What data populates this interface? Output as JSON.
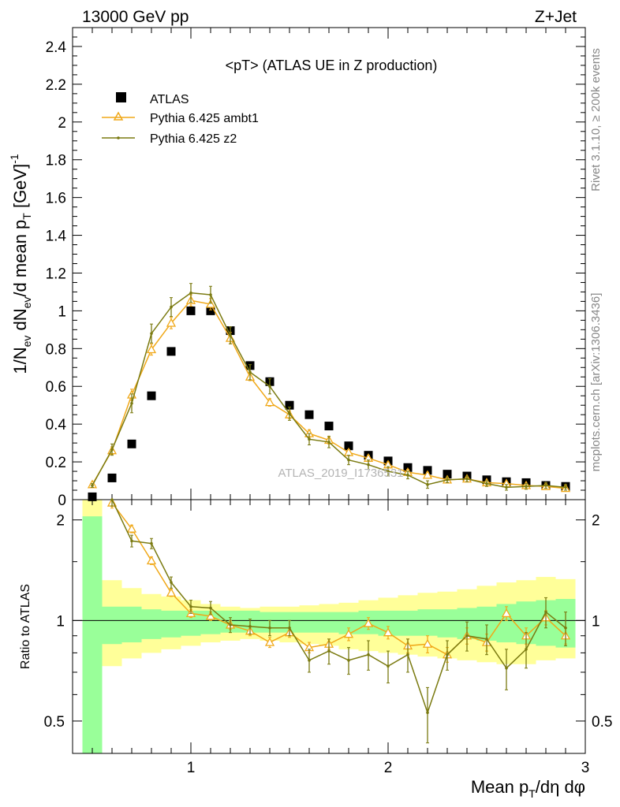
{
  "header": {
    "left": "13000 GeV pp",
    "right": "Z+Jet"
  },
  "side": {
    "rivet": "Rivet 3.1.10, ≥ 200k events",
    "mcplots": "mcplots.cern.ch [arXiv:1306.3436]"
  },
  "watermark": "ATLAS_2019_I1736531",
  "chart_data": [
    {
      "type": "scatter",
      "title": "<pT> (ATLAS UE in Z production)",
      "xlabel": "Mean p_T/dη dφ",
      "ylabel": "1/N_ev dN_ev/d mean p_T [GeV]^-1",
      "xlim": [
        0.4,
        3.0
      ],
      "ylim": [
        0,
        2.5
      ],
      "xticks": [
        "1",
        "2",
        "3"
      ],
      "yticks": [
        "0",
        "0.2",
        "0.4",
        "0.6",
        "0.8",
        "1",
        "1.2",
        "1.4",
        "1.6",
        "1.8",
        "2",
        "2.2",
        "2.4"
      ],
      "legend_position": "top-left",
      "legend": [
        "ATLAS",
        "Pythia 6.425 ambt1",
        "Pythia 6.425 z2"
      ],
      "x": [
        0.5,
        0.6,
        0.7,
        0.8,
        0.9,
        1.0,
        1.1,
        1.2,
        1.3,
        1.4,
        1.5,
        1.6,
        1.7,
        1.8,
        1.9,
        2.0,
        2.1,
        2.2,
        2.3,
        2.4,
        2.5,
        2.6,
        2.7,
        2.8,
        2.9
      ],
      "series": [
        {
          "name": "ATLAS",
          "color": "#000000",
          "marker": "square",
          "values": [
            0.015,
            0.115,
            0.295,
            0.55,
            0.785,
            1.0,
            1.0,
            0.895,
            0.71,
            0.625,
            0.5,
            0.45,
            0.39,
            0.285,
            0.235,
            0.205,
            0.17,
            0.155,
            0.135,
            0.125,
            0.105,
            0.095,
            0.09,
            0.075,
            0.07
          ]
        },
        {
          "name": "Pythia 6.425 ambt1",
          "color": "#f0a818",
          "marker": "triangle",
          "values": [
            0.08,
            0.26,
            0.555,
            0.795,
            0.935,
            1.055,
            1.035,
            0.855,
            0.65,
            0.515,
            0.45,
            0.35,
            0.315,
            0.25,
            0.22,
            0.185,
            0.145,
            0.13,
            0.105,
            0.11,
            0.09,
            0.085,
            0.075,
            0.07,
            0.06
          ],
          "errors": [
            0.01,
            0.02,
            0.03,
            0.03,
            0.03,
            0.03,
            0.03,
            0.03,
            0.02,
            0.02,
            0.02,
            0.02,
            0.02,
            0.015,
            0.015,
            0.015,
            0.015,
            0.015,
            0.01,
            0.01,
            0.01,
            0.01,
            0.01,
            0.01,
            0.01
          ]
        },
        {
          "name": "Pythia 6.425 z2",
          "color": "#7a7a10",
          "marker": "dot",
          "values": [
            0.075,
            0.265,
            0.51,
            0.88,
            1.02,
            1.095,
            1.085,
            0.87,
            0.675,
            0.6,
            0.455,
            0.32,
            0.305,
            0.21,
            0.185,
            0.15,
            0.13,
            0.08,
            0.105,
            0.11,
            0.085,
            0.065,
            0.07,
            0.075,
            0.065
          ],
          "errors": [
            0.01,
            0.03,
            0.05,
            0.05,
            0.05,
            0.05,
            0.045,
            0.045,
            0.04,
            0.04,
            0.035,
            0.03,
            0.03,
            0.025,
            0.025,
            0.025,
            0.02,
            0.02,
            0.015,
            0.015,
            0.015,
            0.015,
            0.015,
            0.015,
            0.015
          ]
        }
      ]
    },
    {
      "type": "scatter",
      "ylabel": "Ratio to ATLAS",
      "xlabel": "Mean p_T/dη dφ",
      "xlim": [
        0.4,
        3.0
      ],
      "ylim": [
        0.4,
        2.3
      ],
      "yscale": "log",
      "yticks": [
        "0.5",
        "1",
        "2"
      ],
      "xticks": [
        "1",
        "2",
        "3"
      ],
      "reference_line": 1,
      "bins": [
        0.45,
        0.55,
        0.65,
        0.75,
        0.85,
        0.95,
        1.05,
        1.15,
        1.25,
        1.35,
        1.45,
        1.55,
        1.65,
        1.75,
        1.85,
        1.95,
        2.05,
        2.15,
        2.25,
        2.35,
        2.45,
        2.55,
        2.65,
        2.75,
        2.85,
        2.95
      ],
      "band_stat_upper": [
        2.05,
        1.1,
        1.1,
        1.08,
        1.07,
        1.07,
        1.07,
        1.07,
        1.07,
        1.06,
        1.06,
        1.06,
        1.06,
        1.06,
        1.07,
        1.07,
        1.07,
        1.08,
        1.08,
        1.09,
        1.1,
        1.12,
        1.14,
        1.15,
        1.16
      ],
      "band_stat_lower": [
        0.4,
        0.85,
        0.86,
        0.88,
        0.89,
        0.9,
        0.91,
        0.92,
        0.92,
        0.92,
        0.92,
        0.92,
        0.92,
        0.91,
        0.91,
        0.9,
        0.9,
        0.9,
        0.89,
        0.88,
        0.87,
        0.86,
        0.85,
        0.84,
        0.83
      ],
      "band_total_upper": [
        2.3,
        1.32,
        1.25,
        1.2,
        1.18,
        1.15,
        1.12,
        1.1,
        1.09,
        1.1,
        1.1,
        1.11,
        1.12,
        1.13,
        1.15,
        1.17,
        1.19,
        1.21,
        1.22,
        1.24,
        1.27,
        1.3,
        1.32,
        1.35,
        1.33
      ],
      "band_total_lower": [
        0.4,
        0.73,
        0.77,
        0.8,
        0.82,
        0.84,
        0.86,
        0.87,
        0.88,
        0.87,
        0.86,
        0.85,
        0.84,
        0.82,
        0.81,
        0.8,
        0.79,
        0.78,
        0.77,
        0.76,
        0.75,
        0.74,
        0.74,
        0.76,
        0.77
      ],
      "x": [
        0.5,
        0.6,
        0.7,
        0.8,
        0.9,
        1.0,
        1.1,
        1.2,
        1.3,
        1.4,
        1.5,
        1.6,
        1.7,
        1.8,
        1.9,
        2.0,
        2.1,
        2.2,
        2.3,
        2.4,
        2.5,
        2.6,
        2.7,
        2.8,
        2.9
      ],
      "series": [
        {
          "name": "Pythia 6.425 ambt1",
          "color": "#f0a818",
          "values": [
            null,
            2.25,
            1.88,
            1.51,
            1.21,
            1.05,
            1.03,
            0.97,
            0.93,
            0.86,
            0.92,
            0.83,
            0.85,
            0.91,
            0.98,
            0.92,
            0.84,
            0.85,
            0.79,
            0.9,
            0.86,
            1.05,
            0.9,
            1.02,
            0.9
          ],
          "errors": [
            0,
            0.08,
            0.05,
            0.04,
            0.03,
            0.03,
            0.03,
            0.03,
            0.03,
            0.03,
            0.03,
            0.03,
            0.03,
            0.04,
            0.04,
            0.04,
            0.04,
            0.05,
            0.04,
            0.05,
            0.05,
            0.05,
            0.05,
            0.05,
            0.05
          ]
        },
        {
          "name": "Pythia 6.425 z2",
          "color": "#7a7a10",
          "values": [
            null,
            2.3,
            1.73,
            1.7,
            1.3,
            1.1,
            1.09,
            0.97,
            0.96,
            0.95,
            0.95,
            0.76,
            0.81,
            0.76,
            0.79,
            0.73,
            0.79,
            0.53,
            0.79,
            0.9,
            0.88,
            0.72,
            0.82,
            1.06,
            0.95
          ],
          "errors": [
            0,
            0.1,
            0.07,
            0.06,
            0.05,
            0.05,
            0.05,
            0.05,
            0.05,
            0.05,
            0.05,
            0.06,
            0.07,
            0.07,
            0.08,
            0.08,
            0.09,
            0.1,
            0.08,
            0.09,
            0.09,
            0.1,
            0.1,
            0.11,
            0.11
          ]
        }
      ]
    }
  ]
}
